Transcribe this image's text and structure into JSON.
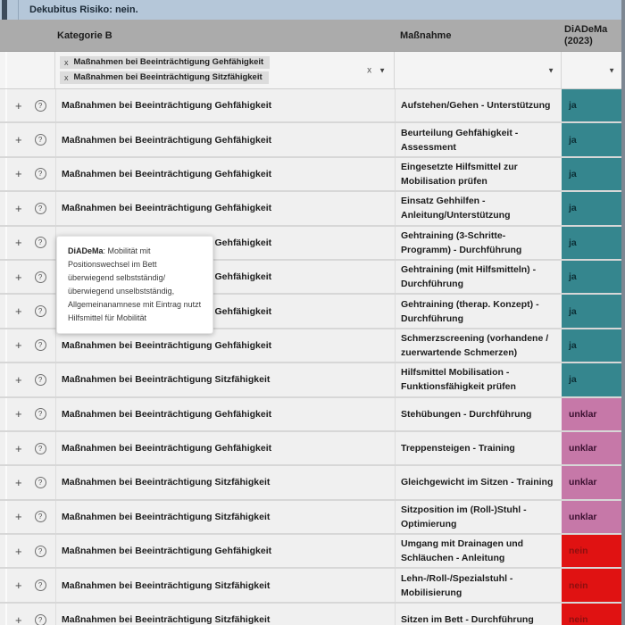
{
  "top_bar": {
    "label": "Dekubitus Risiko: nein."
  },
  "table": {
    "columns": {
      "category": "Kategorie B",
      "measure": "Maßnahme",
      "diadema_line1": "DiADeMa",
      "diadema_line2": "(2023)"
    },
    "filters": {
      "category_tags": [
        {
          "remove": "x",
          "label": "Maßnahmen bei Beeinträchtigung Gehfähigkeit"
        },
        {
          "remove": "x",
          "label": "Maßnahmen bei Beeinträchtigung Sitzfähigkeit"
        }
      ],
      "clear_icon": "x",
      "dropdown_icon": "▼"
    },
    "rows": [
      {
        "category": "Maßnahmen bei Beeinträchtigung Gehfähigkeit",
        "measure": "Aufstehen/Gehen - Unterstützung",
        "status": "ja"
      },
      {
        "category": "Maßnahmen bei Beeinträchtigung Gehfähigkeit",
        "measure": "Beurteilung Gehfähigkeit - Assessment",
        "status": "ja"
      },
      {
        "category": "Maßnahmen bei Beeinträchtigung Gehfähigkeit",
        "measure": "Eingesetzte Hilfsmittel zur Mobilisation prüfen",
        "status": "ja"
      },
      {
        "category": "Maßnahmen bei Beeinträchtigung Gehfähigkeit",
        "measure": "Einsatz Gehhilfen - Anleitung/Unterstützung",
        "status": "ja"
      },
      {
        "category": "Maßnahmen bei Beeinträchtigung Gehfähigkeit",
        "measure": "Gehtraining (3-Schritte-Programm) - Durchführung",
        "status": "ja"
      },
      {
        "category": "Maßnahmen bei Beeinträchtigung Gehfähigkeit",
        "measure": "Gehtraining (mit Hilfsmitteln) - Durchführung",
        "status": "ja"
      },
      {
        "category": "Maßnahmen bei Beeinträchtigung Gehfähigkeit",
        "measure": "Gehtraining (therap. Konzept) - Durchführung",
        "status": "ja"
      },
      {
        "category": "Maßnahmen bei Beeinträchtigung Gehfähigkeit",
        "measure": "Schmerzscreening (vorhandene / zuerwartende Schmerzen)",
        "status": "ja"
      },
      {
        "category": "Maßnahmen bei Beeinträchtigung Sitzfähigkeit",
        "measure": "Hilfsmittel Mobilisation - Funktionsfähigkeit prüfen",
        "status": "ja"
      },
      {
        "category": "Maßnahmen bei Beeinträchtigung Gehfähigkeit",
        "measure": "Stehübungen - Durchführung",
        "status": "unklar"
      },
      {
        "category": "Maßnahmen bei Beeinträchtigung Gehfähigkeit",
        "measure": "Treppensteigen - Training",
        "status": "unklar"
      },
      {
        "category": "Maßnahmen bei Beeinträchtigung Sitzfähigkeit",
        "measure": "Gleichgewicht im Sitzen - Training",
        "status": "unklar"
      },
      {
        "category": "Maßnahmen bei Beeinträchtigung Sitzfähigkeit",
        "measure": "Sitzposition im (Roll-)Stuhl - Optimierung",
        "status": "unklar"
      },
      {
        "category": "Maßnahmen bei Beeinträchtigung Gehfähigkeit",
        "measure": "Umgang mit Drainagen und Schläuchen - Anleitung",
        "status": "nein"
      },
      {
        "category": "Maßnahmen bei Beeinträchtigung Sitzfähigkeit",
        "measure": "Lehn-/Roll-/Spezialstuhl - Mobilisierung",
        "status": "nein"
      },
      {
        "category": "Maßnahmen bei Beeinträchtigung Sitzfähigkeit",
        "measure": "Sitzen im Bett - Durchführung",
        "status": "nein"
      }
    ]
  },
  "tooltip": {
    "term": "DiADeMa",
    "text": ": Mobilität mit Positionswechsel im Bett überwiegend selbstständig/überwiegend unselbstständig, Allgemeinanamnese mit Eintrag nutzt Hilfsmittel für Mobilität"
  },
  "icons": {
    "add": "+",
    "help": "?"
  },
  "status_colors": {
    "ja": "#35868E",
    "unklar": "#C678A8",
    "nein": "#E01212"
  },
  "status_text_colors": {
    "ja": "#0C2F36",
    "unklar": "#3B1030",
    "nein": "#8E0F0F"
  }
}
